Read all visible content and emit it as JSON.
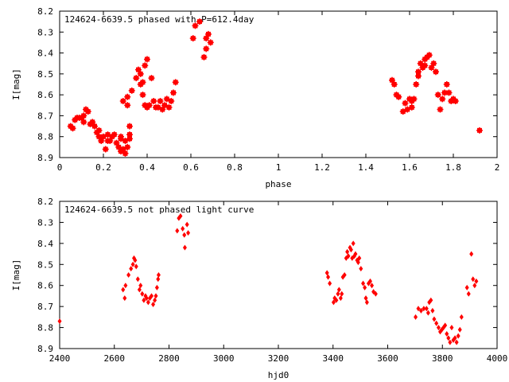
{
  "chart_data": [
    {
      "type": "scatter",
      "title": "124624-6639.5 phased with P=612.4day",
      "xlabel": "phase",
      "ylabel": "I[mag]",
      "xlim": [
        0,
        2
      ],
      "ylim": [
        8.9,
        8.2
      ],
      "y_inverted": true,
      "x_ticks": [
        "0",
        "0.2",
        "0.4",
        "0.6",
        "0.8",
        "1",
        "1.2",
        "1.4",
        "1.6",
        "1.8",
        "2"
      ],
      "y_ticks": [
        "8.2",
        "8.3",
        "8.4",
        "8.5",
        "8.6",
        "8.7",
        "8.8",
        "8.9"
      ],
      "grid": false,
      "marker_color": "#ff0000",
      "marker": "plus-square",
      "series": [
        {
          "x": [
            0.05,
            0.06,
            0.07,
            0.08,
            0.09,
            0.1,
            0.11,
            0.11,
            0.12,
            0.13,
            0.14,
            0.15,
            0.16,
            0.17,
            0.18,
            0.18,
            0.19,
            0.2,
            0.21,
            0.22,
            0.22,
            0.23,
            0.24,
            0.25,
            0.26,
            0.27,
            0.28,
            0.28,
            0.29,
            0.29,
            0.3,
            0.3,
            0.31,
            0.31,
            0.32,
            0.32,
            0.3,
            0.28,
            0.31,
            0.32,
            0.33,
            0.35,
            0.36,
            0.37,
            0.37,
            0.38,
            0.38,
            0.39,
            0.39,
            0.4,
            0.4,
            0.41,
            0.42,
            0.43,
            0.44,
            0.45,
            0.46,
            0.47,
            0.48,
            0.49,
            0.5,
            0.51,
            0.52,
            0.53,
            0.61,
            0.62,
            0.64,
            0.66,
            0.67,
            0.67,
            0.68,
            0.69,
            1.52,
            1.53,
            1.54,
            1.55,
            1.57,
            1.58,
            1.59,
            1.6,
            1.61,
            1.61,
            1.62,
            1.63,
            1.64,
            1.64,
            1.65,
            1.66,
            1.67,
            1.67,
            1.68,
            1.69,
            1.7,
            1.71,
            1.72,
            1.73,
            1.74,
            1.75,
            1.76,
            1.77,
            1.78,
            1.79,
            1.8,
            1.81,
            1.92
          ],
          "y": [
            8.75,
            8.76,
            8.72,
            8.71,
            8.71,
            8.71,
            8.7,
            8.73,
            8.67,
            8.68,
            8.74,
            8.73,
            8.75,
            8.78,
            8.77,
            8.8,
            8.82,
            8.8,
            8.86,
            8.79,
            8.82,
            8.82,
            8.8,
            8.79,
            8.83,
            8.85,
            8.87,
            8.8,
            8.86,
            8.63,
            8.82,
            8.88,
            8.61,
            8.65,
            8.75,
            8.81,
            8.88,
            8.81,
            8.85,
            8.79,
            8.58,
            8.52,
            8.48,
            8.5,
            8.55,
            8.54,
            8.6,
            8.46,
            8.65,
            8.43,
            8.66,
            8.65,
            8.52,
            8.63,
            8.66,
            8.66,
            8.63,
            8.67,
            8.65,
            8.62,
            8.66,
            8.63,
            8.59,
            8.54,
            8.33,
            8.27,
            8.25,
            8.42,
            8.33,
            8.38,
            8.31,
            8.35,
            8.53,
            8.55,
            8.6,
            8.61,
            8.68,
            8.64,
            8.67,
            8.62,
            8.63,
            8.66,
            8.62,
            8.55,
            8.49,
            8.51,
            8.45,
            8.47,
            8.43,
            8.46,
            8.42,
            8.41,
            8.47,
            8.45,
            8.49,
            8.6,
            8.67,
            8.62,
            8.59,
            8.55,
            8.59,
            8.63,
            8.62,
            8.63,
            8.77
          ]
        }
      ]
    },
    {
      "type": "scatter",
      "title": "124624-6639.5 not phased light curve",
      "xlabel": "hjd0",
      "ylabel": "I[mag]",
      "xlim": [
        2400,
        4000
      ],
      "ylim": [
        8.9,
        8.2
      ],
      "y_inverted": true,
      "x_ticks": [
        "2400",
        "2600",
        "2800",
        "3000",
        "3200",
        "3400",
        "3600",
        "3800",
        "4000"
      ],
      "y_ticks": [
        "8.2",
        "8.3",
        "8.4",
        "8.5",
        "8.6",
        "8.7",
        "8.8",
        "8.9"
      ],
      "grid": false,
      "marker_color": "#ff0000",
      "marker": "diamond",
      "series": [
        {
          "x": [
            2400,
            2632,
            2638,
            2641,
            2652,
            2661,
            2668,
            2672,
            2676,
            2680,
            2686,
            2692,
            2696,
            2702,
            2708,
            2714,
            2718,
            2724,
            2730,
            2736,
            2742,
            2748,
            2752,
            2756,
            2760,
            2762,
            2830,
            2836,
            2842,
            2850,
            2856,
            2858,
            2866,
            2870,
            3378,
            3382,
            3388,
            3402,
            3406,
            3412,
            3418,
            3422,
            3428,
            3432,
            3436,
            3442,
            3448,
            3452,
            3456,
            3462,
            3466,
            3470,
            3474,
            3478,
            3482,
            3488,
            3492,
            3496,
            3502,
            3510,
            3516,
            3520,
            3524,
            3530,
            3536,
            3542,
            3548,
            3556,
            3702,
            3712,
            3722,
            3732,
            3742,
            3748,
            3752,
            3758,
            3764,
            3770,
            3778,
            3786,
            3792,
            3798,
            3804,
            3810,
            3816,
            3822,
            3828,
            3834,
            3840,
            3846,
            3852,
            3858,
            3864,
            3870,
            3890,
            3896,
            3906,
            3912,
            3918,
            3924
          ],
          "y": [
            8.77,
            8.62,
            8.66,
            8.6,
            8.55,
            8.52,
            8.5,
            8.47,
            8.48,
            8.51,
            8.57,
            8.62,
            8.6,
            8.64,
            8.67,
            8.65,
            8.66,
            8.68,
            8.66,
            8.65,
            8.69,
            8.67,
            8.65,
            8.61,
            8.57,
            8.55,
            8.34,
            8.28,
            8.27,
            8.33,
            8.36,
            8.42,
            8.31,
            8.35,
            8.54,
            8.56,
            8.59,
            8.68,
            8.66,
            8.67,
            8.64,
            8.62,
            8.66,
            8.64,
            8.56,
            8.55,
            8.47,
            8.44,
            8.46,
            8.42,
            8.43,
            8.47,
            8.4,
            8.46,
            8.45,
            8.48,
            8.49,
            8.47,
            8.52,
            8.59,
            8.61,
            8.66,
            8.68,
            8.59,
            8.58,
            8.6,
            8.63,
            8.64,
            8.75,
            8.71,
            8.72,
            8.71,
            8.71,
            8.73,
            8.68,
            8.67,
            8.72,
            8.76,
            8.78,
            8.8,
            8.82,
            8.81,
            8.8,
            8.79,
            8.83,
            8.85,
            8.87,
            8.8,
            8.86,
            8.85,
            8.87,
            8.84,
            8.81,
            8.75,
            8.61,
            8.64,
            8.45,
            8.57,
            8.6,
            8.58
          ]
        }
      ]
    }
  ]
}
